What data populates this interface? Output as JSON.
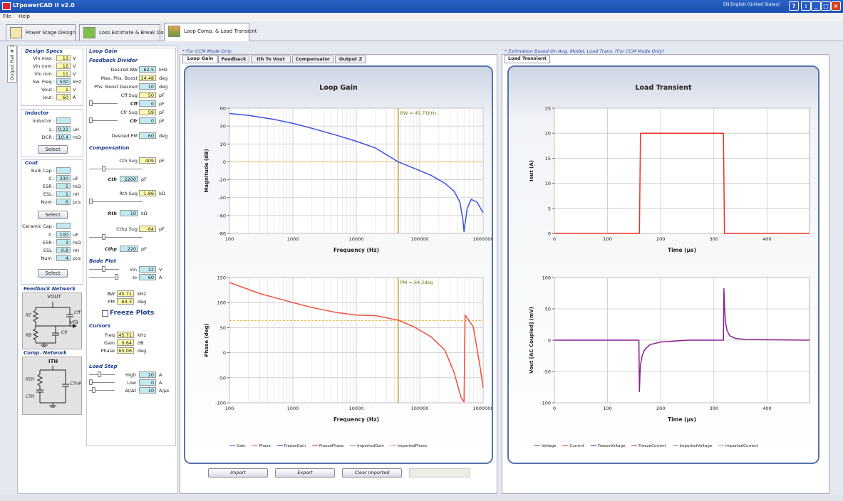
{
  "window": {
    "title": "LTpowerCAD II v2.0",
    "language": "EN English (United States)",
    "help": "?"
  },
  "menu": {
    "file": "File",
    "help": "Help"
  },
  "tabs": [
    {
      "label": "Power Stage Design"
    },
    {
      "label": "Loss Estimate & Break Down"
    },
    {
      "label": "Loop Comp. & Load Transient"
    }
  ],
  "vertical_tab": "Output Rail # 1",
  "design_specs": {
    "title": "Design Specs",
    "rows": [
      {
        "label": "Vin max :",
        "value": "13",
        "unit": "V"
      },
      {
        "label": "Vin nom :",
        "value": "12",
        "unit": "V"
      },
      {
        "label": "Vin min :",
        "value": "11",
        "unit": "V"
      },
      {
        "label": "Sw. Freq :",
        "value": "500",
        "unit": "kHz"
      },
      {
        "label": "Vout :",
        "value": "1",
        "unit": "V"
      },
      {
        "label": "Iout :",
        "value": "60",
        "unit": "A"
      }
    ]
  },
  "inductor": {
    "title": "Inductor",
    "label": "Inductor :",
    "rows": [
      {
        "label": "L :",
        "value": "0.22",
        "unit": "uH"
      },
      {
        "label": "DCR :",
        "value": "10.4",
        "unit": "mΩ"
      }
    ],
    "select": "Select"
  },
  "cout": {
    "title": "Cout",
    "bulk_label": "Bulk Cap :",
    "bulk": [
      {
        "label": "C :",
        "value": "330",
        "unit": "uF"
      },
      {
        "label": "ESR :",
        "value": "5",
        "unit": "mΩ"
      },
      {
        "label": "ESL :",
        "value": "1",
        "unit": "nH"
      },
      {
        "label": "Num :",
        "value": "6",
        "unit": "pcs"
      }
    ],
    "bulk_select": "Select",
    "ceramic_label": "Ceramic Cap :",
    "ceramic": [
      {
        "label": "C :",
        "value": "100",
        "unit": "uF"
      },
      {
        "label": "ESR :",
        "value": "3",
        "unit": "mΩ"
      },
      {
        "label": "ESL :",
        "value": "0.8",
        "unit": "nH"
      },
      {
        "label": "Num :",
        "value": "4",
        "unit": "pcs"
      }
    ],
    "ceramic_select": "Select"
  },
  "feedback_network": {
    "title": "Feedback Network",
    "labels": {
      "vout": "VOUT",
      "rt": "RT",
      "rb": "RB",
      "cff": "Cff",
      "cfr": "Cfr",
      "vfb": "VFB"
    }
  },
  "comp_network": {
    "title": "Comp. Network",
    "labels": {
      "ith": "ITH",
      "rth": "RTH",
      "cth": "CTH",
      "cthp": "CTHP"
    }
  },
  "loop_gain": {
    "title": "Loop Gain",
    "feedback_divider": {
      "title": "Feedback Divider",
      "rows": [
        {
          "label": "Desired BW",
          "value": "62.5",
          "unit": "kHz",
          "style": "c"
        },
        {
          "label": "Max. Phs. Boost",
          "value": "14.48",
          "unit": "deg",
          "style": "y"
        },
        {
          "label": "Phs. Boost Desired",
          "value": "10",
          "unit": "deg",
          "style": "c"
        },
        {
          "label": "Cff Sug",
          "value": "50",
          "unit": "pF",
          "style": "y"
        },
        {
          "label": "Cff",
          "value": "0",
          "unit": "pF",
          "style": "c"
        },
        {
          "label": "Cfr Sug",
          "value": "59",
          "unit": "pF",
          "style": "y"
        },
        {
          "label": "Cfr",
          "value": "0",
          "unit": "pF",
          "style": "c"
        },
        {
          "label": "Desired PM",
          "value": "60",
          "unit": "deg",
          "style": "c"
        }
      ]
    },
    "compensation": {
      "title": "Compensation",
      "rows": [
        {
          "label": "Cth Sug",
          "value": "409",
          "unit": "pF",
          "style": "y"
        },
        {
          "label": "Cth",
          "value": "2200",
          "unit": "pF",
          "style": "c"
        },
        {
          "label": "Rth Sug",
          "value": "1.86",
          "unit": "kΩ",
          "style": "y"
        },
        {
          "label": "Rth",
          "value": "10",
          "unit": "kΩ",
          "style": "c"
        },
        {
          "label": "Cthp Sug",
          "value": "64",
          "unit": "pF",
          "style": "y"
        },
        {
          "label": "Cthp",
          "value": "220",
          "unit": "pF",
          "style": "c"
        }
      ]
    },
    "bode_plot": {
      "title": "Bode Plot",
      "rows": [
        {
          "label": "Vin",
          "value": "12",
          "unit": "V",
          "style": "c"
        },
        {
          "label": "Io",
          "value": "60",
          "unit": "A",
          "style": "c"
        },
        {
          "label": "BW",
          "value": "45.71",
          "unit": "kHz",
          "style": "y"
        },
        {
          "label": "PM",
          "value": "64.3",
          "unit": "deg",
          "style": "y"
        }
      ],
      "freeze": "Freeze Plots"
    },
    "cursors": {
      "title": "Cursors",
      "rows": [
        {
          "label": "Freq",
          "value": "45.71",
          "unit": "kHz",
          "style": "y"
        },
        {
          "label": "Gain",
          "value": "0.64",
          "unit": "dB",
          "style": "y"
        },
        {
          "label": "Phase",
          "value": "65.06",
          "unit": "deg",
          "style": "y"
        }
      ]
    },
    "load_step": {
      "title": "Load Step",
      "rows": [
        {
          "label": "High",
          "value": "20",
          "unit": "A",
          "style": "c"
        },
        {
          "label": "Low",
          "value": "0",
          "unit": "A",
          "style": "c"
        },
        {
          "label": "ΔI/Δt",
          "value": "10",
          "unit": "A/µs",
          "style": "c"
        }
      ]
    }
  },
  "middle": {
    "note": "* For CCM Mode Only",
    "subtabs": [
      "Loop Gain",
      "Feedback",
      "Ith To Vout",
      "Compensator",
      "Output Z"
    ],
    "card_title": "Loop Gain",
    "legend": [
      {
        "name": "Gain",
        "color": "#3b4fe0"
      },
      {
        "name": "Phase",
        "color": "#f0503c"
      },
      {
        "name": "FreezeGain",
        "color": "#1f2bb0"
      },
      {
        "name": "FreezePhase",
        "color": "#e03020"
      },
      {
        "name": "ImportedGain",
        "color": "#808080"
      },
      {
        "name": "ImportedPhase",
        "color": "#f08060"
      }
    ],
    "buttons": {
      "import": "Import",
      "export": "Export",
      "clear": "Clear Imported"
    }
  },
  "right": {
    "note": "* Estimation Based On Avg. Model, Load Trans. (For CCM Mode Only)",
    "subtab": "Load Transient",
    "card_title": "Load Transient",
    "legend": [
      {
        "name": "Voltage",
        "color": "#8a2090"
      },
      {
        "name": "Current",
        "color": "#f03020"
      },
      {
        "name": "FreezeVoltage",
        "color": "#1f2bb0"
      },
      {
        "name": "FreezeCurrent",
        "color": "#e03020"
      },
      {
        "name": "ImportedVoltage",
        "color": "#808080"
      },
      {
        "name": "ImportedCurrent",
        "color": "#f08060"
      }
    ]
  },
  "chart_data": [
    {
      "type": "line",
      "title": "",
      "xlabel": "Frequency (Hz)",
      "ylabel": "Magnitude (dB)",
      "xscale": "log",
      "xlim": [
        100,
        1000000
      ],
      "ylim": [
        -80,
        60
      ],
      "xticks": [
        100,
        1000,
        10000,
        100000,
        1000000
      ],
      "xtick_labels": [
        "100",
        "1000",
        "10000",
        "100000",
        "1000000"
      ],
      "yticks": [
        -80,
        -60,
        -40,
        -20,
        0,
        20,
        40,
        60
      ],
      "annotation": "BW = 45.71kHz",
      "cursor_x": 45710,
      "ref_y": 0,
      "series": [
        {
          "name": "Gain",
          "color": "#3b4fe0",
          "x": [
            100,
            200,
            500,
            1000,
            2000,
            5000,
            10000,
            20000,
            45710,
            80000,
            150000,
            250000,
            350000,
            430000,
            480000,
            500000,
            560000,
            650000,
            800000,
            1000000
          ],
          "y": [
            54,
            52,
            47.5,
            43,
            37.5,
            29.5,
            23,
            15.5,
            0,
            -7,
            -15,
            -24,
            -33,
            -45,
            -65,
            -78,
            -52,
            -42,
            -45,
            -57
          ]
        }
      ]
    },
    {
      "type": "line",
      "title": "",
      "xlabel": "Frequency (Hz)",
      "ylabel": "Phase (deg)",
      "xscale": "log",
      "xlim": [
        100,
        1000000
      ],
      "ylim": [
        -100,
        150
      ],
      "xticks": [
        100,
        1000,
        10000,
        100000,
        1000000
      ],
      "xtick_labels": [
        "100",
        "1000",
        "10000",
        "100000",
        "1000000"
      ],
      "yticks": [
        -100,
        -50,
        0,
        50,
        100,
        150
      ],
      "annotation": "PM = 64.3deg",
      "cursor_x": 45710,
      "ref_y": 64.3,
      "series": [
        {
          "name": "Phase",
          "color": "#f0503c",
          "x": [
            100,
            150,
            300,
            1000,
            2000,
            5000,
            10000,
            20000,
            45710,
            80000,
            150000,
            250000,
            350000,
            450000,
            500000,
            520000,
            700000,
            900000,
            1000000
          ],
          "y": [
            140,
            132,
            118,
            100,
            90,
            80,
            75,
            74,
            65,
            52,
            32,
            5,
            -40,
            -90,
            -98,
            75,
            52,
            -30,
            -70
          ]
        }
      ]
    },
    {
      "type": "line",
      "title": "",
      "xlabel": "Time (µs)",
      "ylabel": "Iout (A)",
      "xlim": [
        0,
        480
      ],
      "ylim": [
        0,
        25
      ],
      "xticks": [
        0,
        100,
        200,
        300,
        400
      ],
      "yticks": [
        0,
        5,
        10,
        15,
        20,
        25
      ],
      "series": [
        {
          "name": "Current",
          "color": "#f03020",
          "x": [
            0,
            160,
            162,
            318,
            320,
            480
          ],
          "y": [
            0,
            0,
            20,
            20,
            0,
            0
          ]
        }
      ]
    },
    {
      "type": "line",
      "title": "",
      "xlabel": "Time (µs)",
      "ylabel": "Vout [AC Coupled] (mV)",
      "xlim": [
        0,
        480
      ],
      "ylim": [
        -100,
        100
      ],
      "xticks": [
        0,
        100,
        200,
        300,
        400
      ],
      "yticks": [
        -100,
        -50,
        0,
        50,
        100
      ],
      "series": [
        {
          "name": "Voltage",
          "color": "#8a2090",
          "x": [
            0,
            159,
            160,
            161,
            162,
            165,
            170,
            180,
            200,
            250,
            318,
            319,
            320,
            321,
            322,
            325,
            330,
            340,
            360,
            480
          ],
          "y": [
            0,
            0,
            -82,
            -55,
            -40,
            -25,
            -15,
            -7,
            -3,
            0,
            0,
            82,
            55,
            40,
            28,
            15,
            7,
            3,
            1,
            0
          ]
        }
      ]
    }
  ]
}
